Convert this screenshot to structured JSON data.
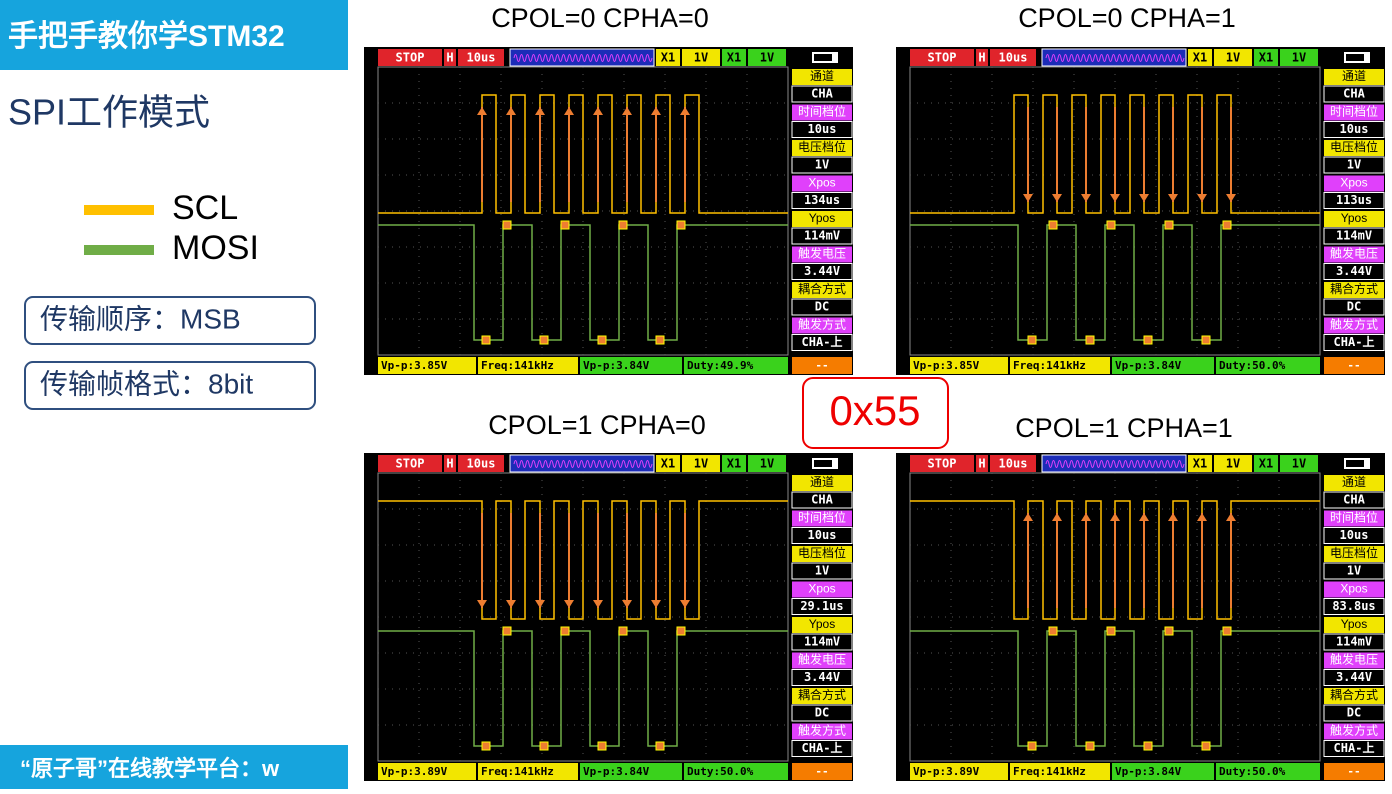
{
  "header": {
    "title": "手把手教你学STM32",
    "subtitle": "SPI工作模式"
  },
  "legend": [
    {
      "label": "SCL",
      "color": "#ffc000"
    },
    {
      "label": "MOSI",
      "color": "#70ad47"
    }
  ],
  "notes": [
    "传输顺序：MSB",
    "传输帧格式：8bit"
  ],
  "center_label": "0x55",
  "footer": "“原子哥”在线教学平台：w",
  "scopes": [
    {
      "title": "CPOL=0 CPHA=0",
      "top": [
        "STOP",
        "H",
        "10us",
        "X1",
        "1V",
        "X1",
        "1V"
      ],
      "panel": [
        [
          "通道",
          "CHA"
        ],
        [
          "时间档位",
          "10us"
        ],
        [
          "电压档位",
          "1V"
        ],
        [
          "Xpos",
          "134us"
        ],
        [
          "Ypos",
          "114mV"
        ],
        [
          "触发电压",
          "3.44V"
        ],
        [
          "耦合方式",
          "DC"
        ],
        [
          "触发方式",
          "CHA-上"
        ]
      ],
      "readouts": [
        "Vp-p:3.85V",
        "Freq:141kHz",
        "Vp-p:3.84V",
        "Duty:49.9%",
        "--"
      ]
    },
    {
      "title": "CPOL=0 CPHA=1",
      "top": [
        "STOP",
        "H",
        "10us",
        "X1",
        "1V",
        "X1",
        "1V"
      ],
      "panel": [
        [
          "通道",
          "CHA"
        ],
        [
          "时间档位",
          "10us"
        ],
        [
          "电压档位",
          "1V"
        ],
        [
          "Xpos",
          "113us"
        ],
        [
          "Ypos",
          "114mV"
        ],
        [
          "触发电压",
          "3.44V"
        ],
        [
          "耦合方式",
          "DC"
        ],
        [
          "触发方式",
          "CHA-上"
        ]
      ],
      "readouts": [
        "Vp-p:3.85V",
        "Freq:141kHz",
        "Vp-p:3.84V",
        "Duty:50.0%",
        "--"
      ]
    },
    {
      "title": "CPOL=1 CPHA=0",
      "top": [
        "STOP",
        "H",
        "10us",
        "X1",
        "1V",
        "X1",
        "1V"
      ],
      "panel": [
        [
          "通道",
          "CHA"
        ],
        [
          "时间档位",
          "10us"
        ],
        [
          "电压档位",
          "1V"
        ],
        [
          "Xpos",
          "29.1us"
        ],
        [
          "Ypos",
          "114mV"
        ],
        [
          "触发电压",
          "3.44V"
        ],
        [
          "耦合方式",
          "DC"
        ],
        [
          "触发方式",
          "CHA-上"
        ]
      ],
      "readouts": [
        "Vp-p:3.89V",
        "Freq:141kHz",
        "Vp-p:3.84V",
        "Duty:50.0%",
        "--"
      ]
    },
    {
      "title": "CPOL=1 CPHA=1",
      "top": [
        "STOP",
        "H",
        "10us",
        "X1",
        "1V",
        "X1",
        "1V"
      ],
      "panel": [
        [
          "通道",
          "CHA"
        ],
        [
          "时间档位",
          "10us"
        ],
        [
          "电压档位",
          "1V"
        ],
        [
          "Xpos",
          "83.8us"
        ],
        [
          "Ypos",
          "114mV"
        ],
        [
          "触发电压",
          "3.44V"
        ],
        [
          "耦合方式",
          "DC"
        ],
        [
          "触发方式",
          "CHA-上"
        ]
      ],
      "readouts": [
        "Vp-p:3.89V",
        "Freq:141kHz",
        "Vp-p:3.84V",
        "Duty:50.0%",
        "--"
      ]
    }
  ]
}
